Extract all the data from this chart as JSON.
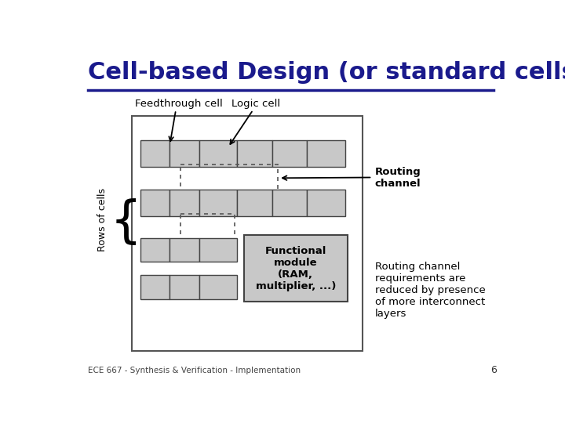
{
  "title": "Cell-based Design (or standard cells)",
  "title_color": "#1a1a8c",
  "title_fontsize": 22,
  "bg_color": "#ffffff",
  "footer_text": "ECE 667 - Synthesis & Verification - Implementation",
  "footer_page": "6",
  "cell_fill": "#c8c8c8",
  "cell_edge": "#444444",
  "box_edge": "#555555",
  "routing_note": "Routing channel\nrequirements are\nreduced by presence\nof more interconnect\nlayers",
  "label_feedthrough": "Feedthrough cell",
  "label_logic": "Logic cell",
  "label_routing": "Routing\nchannel",
  "label_rows": "Rows of cells",
  "label_functional": "Functional\nmodule\n(RAM,\nmultiplier, ...)"
}
